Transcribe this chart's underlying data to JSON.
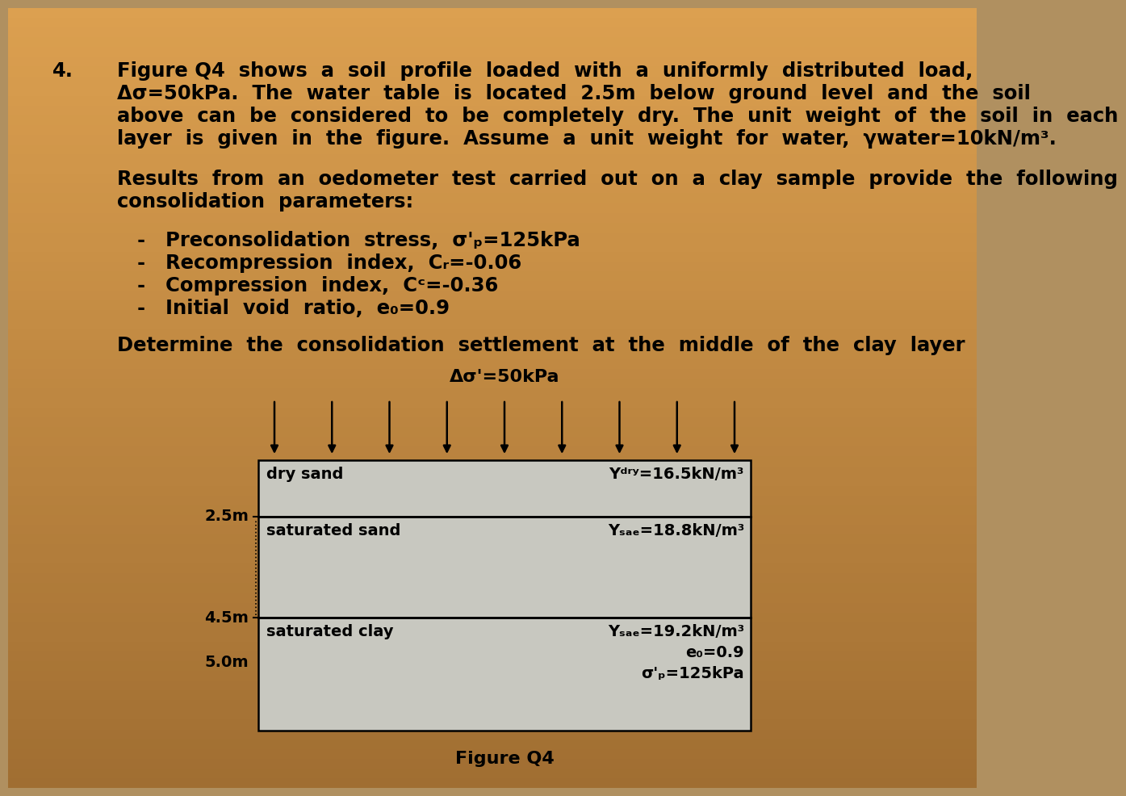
{
  "bg_top_color": "#e8a050",
  "bg_bottom_color": "#b09060",
  "title_number": "4.",
  "p1_lines": [
    "Figure Q4  shows  a  soil  profile  loaded  with  a  uniformly  distributed  load,",
    "Δσ=50kPa.  The  water  table  is  located  2.5m  below  ground  level  and  the  soil",
    "above  can  be  considered  to  be  completely  dry.  The  unit  weight  of  the  soil  in  each",
    "layer  is  given  in  the  figure.  Assume  a  unit  weight  for  water,  γwater=10kN/m³."
  ],
  "p2_lines": [
    "Results  from  an  oedometer  test  carried  out  on  a  clay  sample  provide  the  following",
    "consolidation  parameters:"
  ],
  "bullets": [
    "Preconsolidation  stress,  σ'p=125kPa",
    "Recompression  index,  Cr=-0.06",
    "Compression  index,  Cc=-0.36",
    "Initial  void  ratio,  e₀=0.9"
  ],
  "question": "Determine  the  consolidation  settlement  at  the  middle  of  the  clay  layer",
  "load_label": "Δσ'=50kPa",
  "layer1_name": "dry sand",
  "layer1_gamma": "Yᵈᴿʸ=16.5kN/m³",
  "layer1_depth_label": "2.5m",
  "layer2_name": "saturated sand",
  "layer2_gamma": "Yₛₐₜ=18.8kN/m³",
  "layer2_depth_label": "4.5m",
  "layer3_name": "saturated clay",
  "layer3_gamma": "Yₛₐₜ=19.2kN/m³",
  "layer3_e0": "e₀=0.9",
  "layer3_sp": "σ'p=125kPa",
  "layer3_depth_label": "5.0m",
  "fig_caption": "Figure Q4",
  "box_fill": "#c8c8c0",
  "box_edge": "#000000",
  "text_color": "#000000",
  "arrow_color": "#000000"
}
